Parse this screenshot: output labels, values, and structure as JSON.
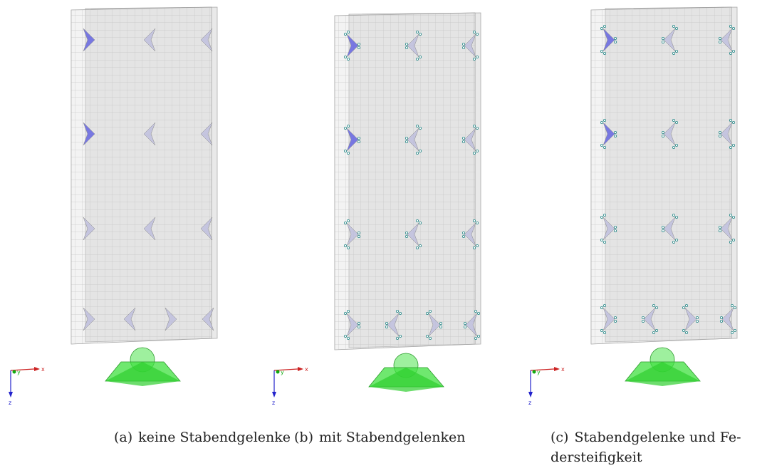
{
  "figure": {
    "panels": [
      {
        "label": "(a)",
        "caption": [
          "keine Stabendgelenke"
        ],
        "axes": {
          "x": "x",
          "y": "y",
          "z": "z"
        }
      },
      {
        "label": "(b)",
        "caption": [
          "mit Stabendgelenken"
        ],
        "axes": {
          "x": "x",
          "y": "y",
          "z": "z"
        }
      },
      {
        "label": "(c)",
        "caption": [
          "Stabendgelenke und Fe-",
          "dersteifigkeit"
        ],
        "axes": {
          "x": "x",
          "y": "y",
          "z": "z"
        }
      }
    ]
  }
}
